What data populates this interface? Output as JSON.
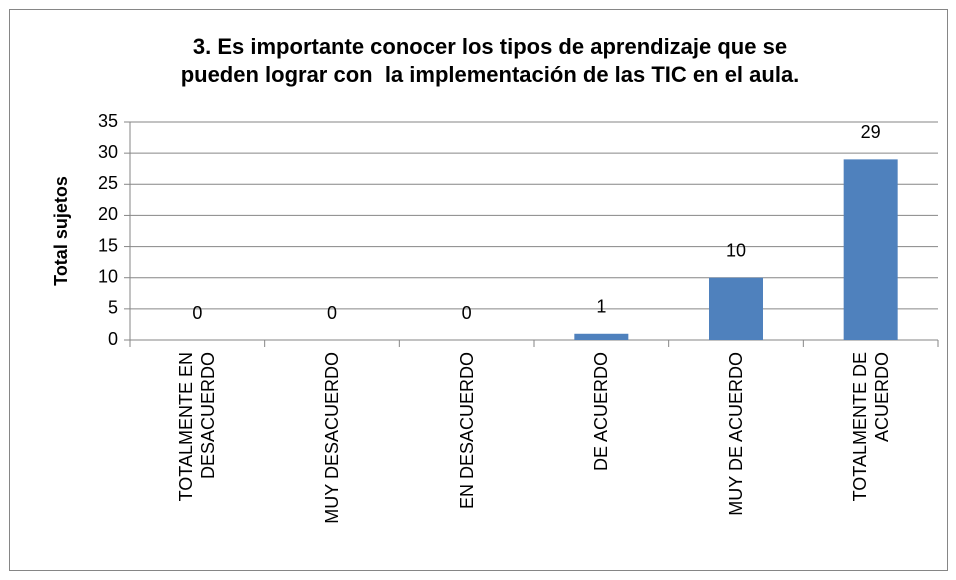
{
  "chart_data": {
    "type": "bar",
    "title": [
      "3. Es importante conocer los tipos de aprendizaje que se",
      "pueden lograr con  la implementación de las TIC en el aula."
    ],
    "y_label": "Total sujetos",
    "categories": [
      "TOTALMENTE EN DESACUERDO",
      "MUY DESACUERDO",
      "EN DESACUERDO",
      "DE ACUERDO",
      "MUY DE ACUERDO",
      "TOTALMENTE DE ACUERDO"
    ],
    "values": [
      0,
      0,
      0,
      1,
      10,
      29
    ],
    "color": "#4f81bd",
    "ylim": [
      0,
      35
    ],
    "yticks": [
      0,
      5,
      10,
      15,
      20,
      25,
      30,
      35
    ],
    "grid": true
  }
}
